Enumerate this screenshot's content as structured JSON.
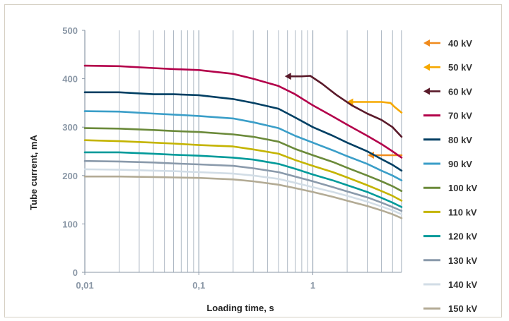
{
  "chart_data": {
    "type": "line",
    "xlabel": "Loading time, s",
    "ylabel": "Tube current, mA",
    "x_scale": "log",
    "xlim": [
      0.01,
      6
    ],
    "ylim": [
      0,
      500
    ],
    "x_ticks": [
      {
        "value": 0.01,
        "label": "0,01"
      },
      {
        "value": 0.1,
        "label": "0,1"
      },
      {
        "value": 1,
        "label": "1"
      }
    ],
    "y_ticks": [
      0,
      100,
      200,
      300,
      400,
      500
    ],
    "grid": "vertical log gridlines",
    "legend_position": "right",
    "series": [
      {
        "name": "40 kV",
        "color": "#f08a1c",
        "arrow": true,
        "points": [
          [
            3.2,
            242
          ],
          [
            6,
            242
          ]
        ]
      },
      {
        "name": "50 kV",
        "color": "#f6a800",
        "arrow": true,
        "points": [
          [
            2.1,
            352
          ],
          [
            3.0,
            352
          ],
          [
            4.0,
            352
          ],
          [
            4.8,
            350
          ],
          [
            5.2,
            342
          ],
          [
            6,
            330
          ]
        ]
      },
      {
        "name": "60 kV",
        "color": "#5a1a2a",
        "arrow": true,
        "points": [
          [
            0.6,
            405
          ],
          [
            0.8,
            405
          ],
          [
            0.95,
            406
          ],
          [
            1.2,
            390
          ],
          [
            1.6,
            367
          ],
          [
            2.2,
            345
          ],
          [
            3.0,
            328
          ],
          [
            4.0,
            315
          ],
          [
            5.0,
            300
          ],
          [
            6,
            280
          ]
        ]
      },
      {
        "name": "70 kV",
        "color": "#b3004a",
        "points": [
          [
            0.01,
            427
          ],
          [
            0.02,
            426
          ],
          [
            0.04,
            422
          ],
          [
            0.06,
            420
          ],
          [
            0.1,
            418
          ],
          [
            0.2,
            410
          ],
          [
            0.3,
            400
          ],
          [
            0.5,
            385
          ],
          [
            0.7,
            368
          ],
          [
            1.0,
            345
          ],
          [
            1.5,
            322
          ],
          [
            2.0,
            305
          ],
          [
            3.0,
            282
          ],
          [
            4.0,
            265
          ],
          [
            5.0,
            250
          ],
          [
            6,
            237
          ]
        ]
      },
      {
        "name": "80 kV",
        "color": "#003f63",
        "points": [
          [
            0.01,
            372
          ],
          [
            0.02,
            372
          ],
          [
            0.04,
            368
          ],
          [
            0.06,
            368
          ],
          [
            0.1,
            366
          ],
          [
            0.2,
            358
          ],
          [
            0.3,
            350
          ],
          [
            0.5,
            338
          ],
          [
            0.7,
            320
          ],
          [
            1.0,
            300
          ],
          [
            1.5,
            282
          ],
          [
            2.0,
            268
          ],
          [
            3.0,
            250
          ],
          [
            4.0,
            234
          ],
          [
            5.0,
            222
          ],
          [
            6,
            210
          ]
        ]
      },
      {
        "name": "90 kV",
        "color": "#3a9ec8",
        "points": [
          [
            0.01,
            333
          ],
          [
            0.02,
            332
          ],
          [
            0.04,
            328
          ],
          [
            0.06,
            326
          ],
          [
            0.1,
            323
          ],
          [
            0.2,
            318
          ],
          [
            0.3,
            310
          ],
          [
            0.5,
            298
          ],
          [
            0.7,
            282
          ],
          [
            1.0,
            268
          ],
          [
            1.5,
            252
          ],
          [
            2.0,
            240
          ],
          [
            3.0,
            224
          ],
          [
            4.0,
            210
          ],
          [
            5.0,
            200
          ],
          [
            6,
            190
          ]
        ]
      },
      {
        "name": "100 kV",
        "color": "#6b8a3a",
        "points": [
          [
            0.01,
            298
          ],
          [
            0.02,
            297
          ],
          [
            0.04,
            294
          ],
          [
            0.06,
            292
          ],
          [
            0.1,
            290
          ],
          [
            0.2,
            285
          ],
          [
            0.3,
            280
          ],
          [
            0.5,
            270
          ],
          [
            0.7,
            255
          ],
          [
            1.0,
            242
          ],
          [
            1.5,
            228
          ],
          [
            2.0,
            216
          ],
          [
            3.0,
            200
          ],
          [
            4.0,
            188
          ],
          [
            5.0,
            178
          ],
          [
            6,
            168
          ]
        ]
      },
      {
        "name": "110 kV",
        "color": "#c4b400",
        "points": [
          [
            0.01,
            273
          ],
          [
            0.02,
            271
          ],
          [
            0.04,
            268
          ],
          [
            0.06,
            266
          ],
          [
            0.1,
            263
          ],
          [
            0.2,
            260
          ],
          [
            0.3,
            254
          ],
          [
            0.5,
            245
          ],
          [
            0.7,
            232
          ],
          [
            1.0,
            220
          ],
          [
            1.5,
            207
          ],
          [
            2.0,
            196
          ],
          [
            3.0,
            180
          ],
          [
            4.0,
            168
          ],
          [
            5.0,
            158
          ],
          [
            6,
            148
          ]
        ]
      },
      {
        "name": "120 kV",
        "color": "#009a9a",
        "points": [
          [
            0.01,
            248
          ],
          [
            0.02,
            248
          ],
          [
            0.04,
            245
          ],
          [
            0.06,
            243
          ],
          [
            0.1,
            241
          ],
          [
            0.2,
            237
          ],
          [
            0.3,
            233
          ],
          [
            0.5,
            224
          ],
          [
            0.7,
            214
          ],
          [
            1.0,
            202
          ],
          [
            1.5,
            190
          ],
          [
            2.0,
            180
          ],
          [
            3.0,
            166
          ],
          [
            4.0,
            154
          ],
          [
            5.0,
            144
          ],
          [
            6,
            135
          ]
        ]
      },
      {
        "name": "130 kV",
        "color": "#8a9aab",
        "points": [
          [
            0.01,
            230
          ],
          [
            0.02,
            229
          ],
          [
            0.04,
            227
          ],
          [
            0.06,
            225
          ],
          [
            0.1,
            223
          ],
          [
            0.2,
            220
          ],
          [
            0.3,
            215
          ],
          [
            0.5,
            207
          ],
          [
            0.7,
            198
          ],
          [
            1.0,
            188
          ],
          [
            1.5,
            176
          ],
          [
            2.0,
            167
          ],
          [
            3.0,
            155
          ],
          [
            4.0,
            144
          ],
          [
            5.0,
            135
          ],
          [
            6,
            127
          ]
        ]
      },
      {
        "name": "140 kV",
        "color": "#d2dde6",
        "points": [
          [
            0.01,
            213
          ],
          [
            0.02,
            212
          ],
          [
            0.04,
            210
          ],
          [
            0.06,
            209
          ],
          [
            0.1,
            207
          ],
          [
            0.2,
            204
          ],
          [
            0.3,
            200
          ],
          [
            0.5,
            193
          ],
          [
            0.7,
            185
          ],
          [
            1.0,
            176
          ],
          [
            1.5,
            166
          ],
          [
            2.0,
            158
          ],
          [
            3.0,
            146
          ],
          [
            4.0,
            136
          ],
          [
            5.0,
            128
          ],
          [
            6,
            120
          ]
        ]
      },
      {
        "name": "150 kV",
        "color": "#b3ab95",
        "points": [
          [
            0.01,
            198
          ],
          [
            0.02,
            198
          ],
          [
            0.04,
            197
          ],
          [
            0.06,
            196
          ],
          [
            0.1,
            195
          ],
          [
            0.2,
            192
          ],
          [
            0.3,
            188
          ],
          [
            0.5,
            181
          ],
          [
            0.7,
            174
          ],
          [
            1.0,
            166
          ],
          [
            1.5,
            156
          ],
          [
            2.0,
            148
          ],
          [
            3.0,
            137
          ],
          [
            4.0,
            128
          ],
          [
            5.0,
            120
          ],
          [
            6,
            112
          ]
        ]
      }
    ]
  }
}
